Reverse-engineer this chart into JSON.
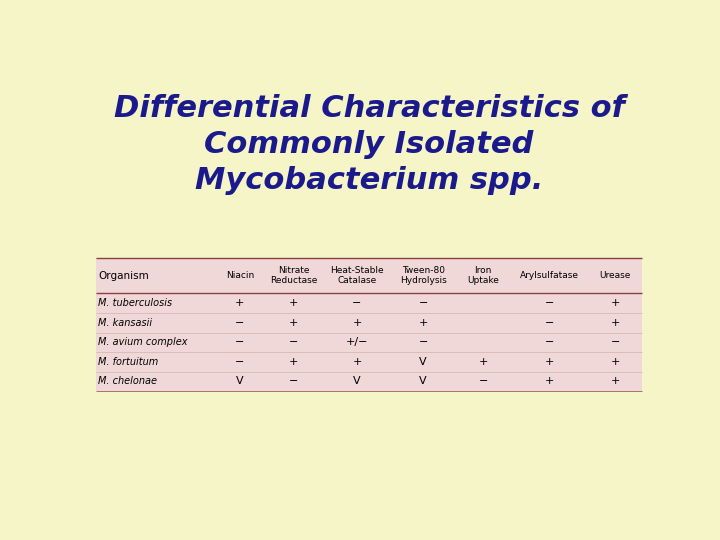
{
  "title_line1": "Differential Characteristics of",
  "title_line2": "Commonly Isolated",
  "title_line3": "Mycobacterium spp.",
  "background_color": "#f5f5c8",
  "table_bg_color": "#f0d8d8",
  "title_color": "#1a1a8c",
  "header_color": "#000000",
  "col_headers": [
    "Organism",
    "Niacin",
    "Nitrate\nReductase",
    "Heat-Stable\nCatalase",
    "Tween-80\nHydrolysis",
    "Iron\nUptake",
    "Arylsulfatase",
    "Urease"
  ],
  "rows": [
    [
      "M. tuberculosis",
      "+",
      "+",
      "−",
      "−",
      "",
      "−",
      "+"
    ],
    [
      "M. kansasii",
      "−",
      "+",
      "+",
      "+",
      "",
      "−",
      "+"
    ],
    [
      "M. avium complex",
      "−",
      "−",
      "+/−",
      "−",
      "",
      "−",
      "−"
    ],
    [
      "M. fortuitum",
      "−",
      "+",
      "+",
      "V",
      "+",
      "+",
      "+"
    ],
    [
      "M. chelonae",
      "V",
      "−",
      "V",
      "V",
      "−",
      "+",
      "+"
    ]
  ],
  "italic_organism": true
}
